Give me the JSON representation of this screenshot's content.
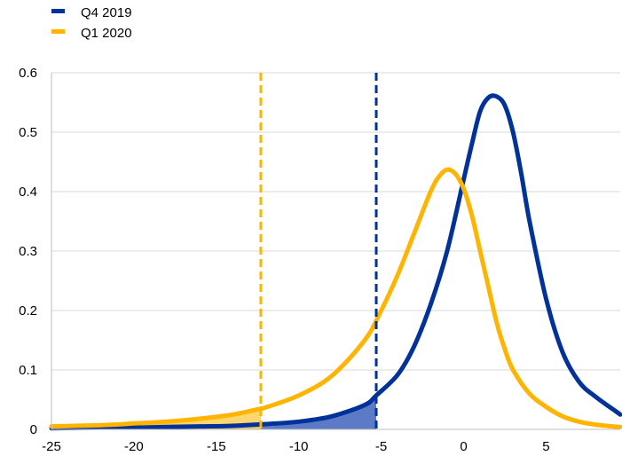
{
  "chart_data": {
    "type": "line",
    "xlim": [
      -25,
      9.5
    ],
    "ylim": [
      0,
      0.6
    ],
    "x_ticks": [
      -25,
      -20,
      -15,
      -10,
      -5,
      0,
      5
    ],
    "y_ticks": [
      0,
      0.1,
      0.2,
      0.3,
      0.4,
      0.5,
      0.6
    ],
    "x_tick_labels": [
      "-25",
      "-20",
      "-15",
      "-10",
      "-5",
      "0",
      "5"
    ],
    "y_tick_labels": [
      "0",
      "0.1",
      "0.2",
      "0.3",
      "0.4",
      "0.5",
      "0.6"
    ],
    "grid": "horizontal",
    "legend_position": "top-left",
    "series": [
      {
        "name": "Q4 2019",
        "color": "#003299",
        "x": [
          -25,
          -22,
          -20,
          -18,
          -16,
          -14,
          -12,
          -10,
          -8,
          -6,
          -5.3,
          -4,
          -3,
          -2,
          -1,
          0,
          0.5,
          1,
          1.5,
          2,
          2.5,
          3,
          3.5,
          4,
          5,
          6,
          7,
          8,
          9,
          9.5
        ],
        "y": [
          0.002,
          0.003,
          0.003,
          0.004,
          0.005,
          0.006,
          0.009,
          0.013,
          0.022,
          0.041,
          0.057,
          0.092,
          0.14,
          0.21,
          0.3,
          0.42,
          0.48,
          0.535,
          0.558,
          0.56,
          0.545,
          0.5,
          0.43,
          0.35,
          0.22,
          0.13,
          0.08,
          0.055,
          0.035,
          0.025
        ],
        "marker_x": -5.3,
        "tail_shaded": true
      },
      {
        "name": "Q1 2020",
        "color": "#FFB400",
        "x": [
          -25,
          -22,
          -20,
          -18,
          -16,
          -14,
          -12.3,
          -12,
          -10,
          -8,
          -6,
          -5,
          -4,
          -3,
          -2,
          -1.5,
          -1,
          -0.5,
          0,
          0.5,
          1,
          1.5,
          2,
          2.5,
          3,
          4,
          5,
          6,
          7,
          8,
          9,
          9.5
        ],
        "y": [
          0.005,
          0.007,
          0.01,
          0.013,
          0.018,
          0.025,
          0.035,
          0.037,
          0.057,
          0.09,
          0.15,
          0.2,
          0.26,
          0.33,
          0.4,
          0.425,
          0.437,
          0.43,
          0.405,
          0.36,
          0.3,
          0.24,
          0.18,
          0.135,
          0.1,
          0.06,
          0.038,
          0.022,
          0.013,
          0.008,
          0.005,
          0.004
        ],
        "marker_x": -12.3,
        "tail_shaded": true
      }
    ]
  }
}
